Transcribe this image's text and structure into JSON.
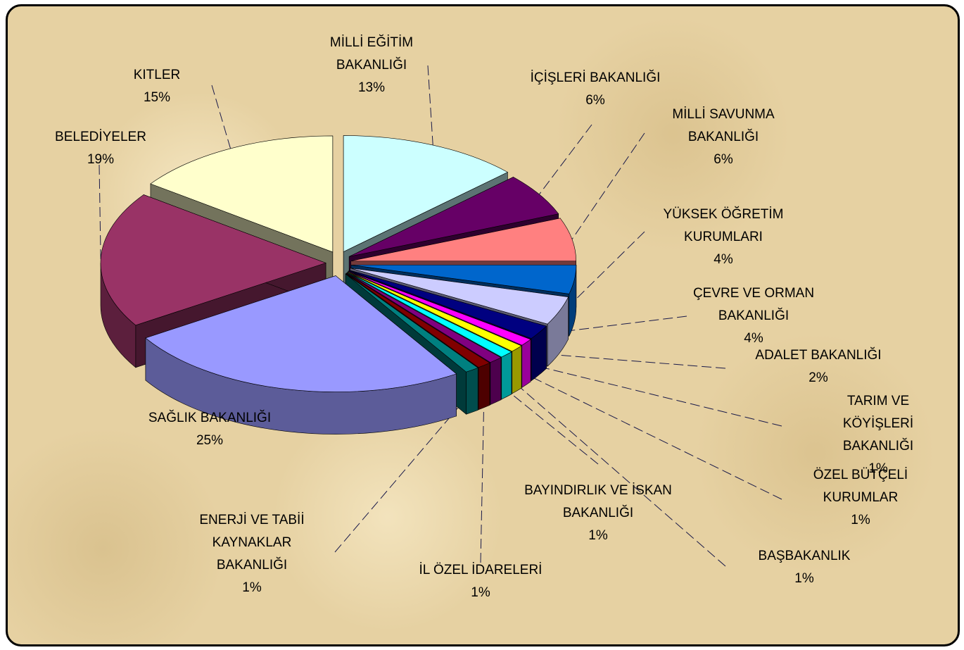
{
  "chart_data": {
    "type": "pie",
    "categories": [
      "MİLLİ EĞİTİM\nBAKANLIĞI",
      "İÇİŞLERİ BAKANLIĞI",
      "MİLLİ SAVUNMA\nBAKANLIĞI",
      "YÜKSEK ÖĞRETİM\nKURUMLARI",
      "ÇEVRE VE ORMAN\nBAKANLIĞI",
      "ADALET BAKANLIĞI",
      "TARIM VE KÖYİŞLERİ\nBAKANLIĞI",
      "ÖZEL BÜTÇELİ\nKURUMLAR",
      "BAŞBAKANLIK",
      "BAYINDIRLIK VE İSKAN\nBAKANLIĞI",
      "İL ÖZEL İDARELERİ",
      "ENERJİ VE TABİİ\nKAYNAKLAR\nBAKANLIĞI",
      "SAĞLIK BAKANLIĞI",
      "BELEDİYELER",
      "KITLER"
    ],
    "values": [
      13,
      6,
      6,
      4,
      4,
      2,
      1,
      1,
      1,
      1,
      1,
      1,
      25,
      19,
      15
    ],
    "value_labels": [
      "13%",
      "6%",
      "6%",
      "4%",
      "4%",
      "2%",
      "1%",
      "1%",
      "1%",
      "1%",
      "1%",
      "1%",
      "25%",
      "19%",
      "15%"
    ],
    "colors": [
      "#ccffff",
      "#660066",
      "#ff8080",
      "#0066cc",
      "#ccccff",
      "#000080",
      "#ff00ff",
      "#ffff00",
      "#00ffff",
      "#800080",
      "#800000",
      "#008080",
      "#9999ff",
      "#993366",
      "#ffffcc"
    ]
  }
}
